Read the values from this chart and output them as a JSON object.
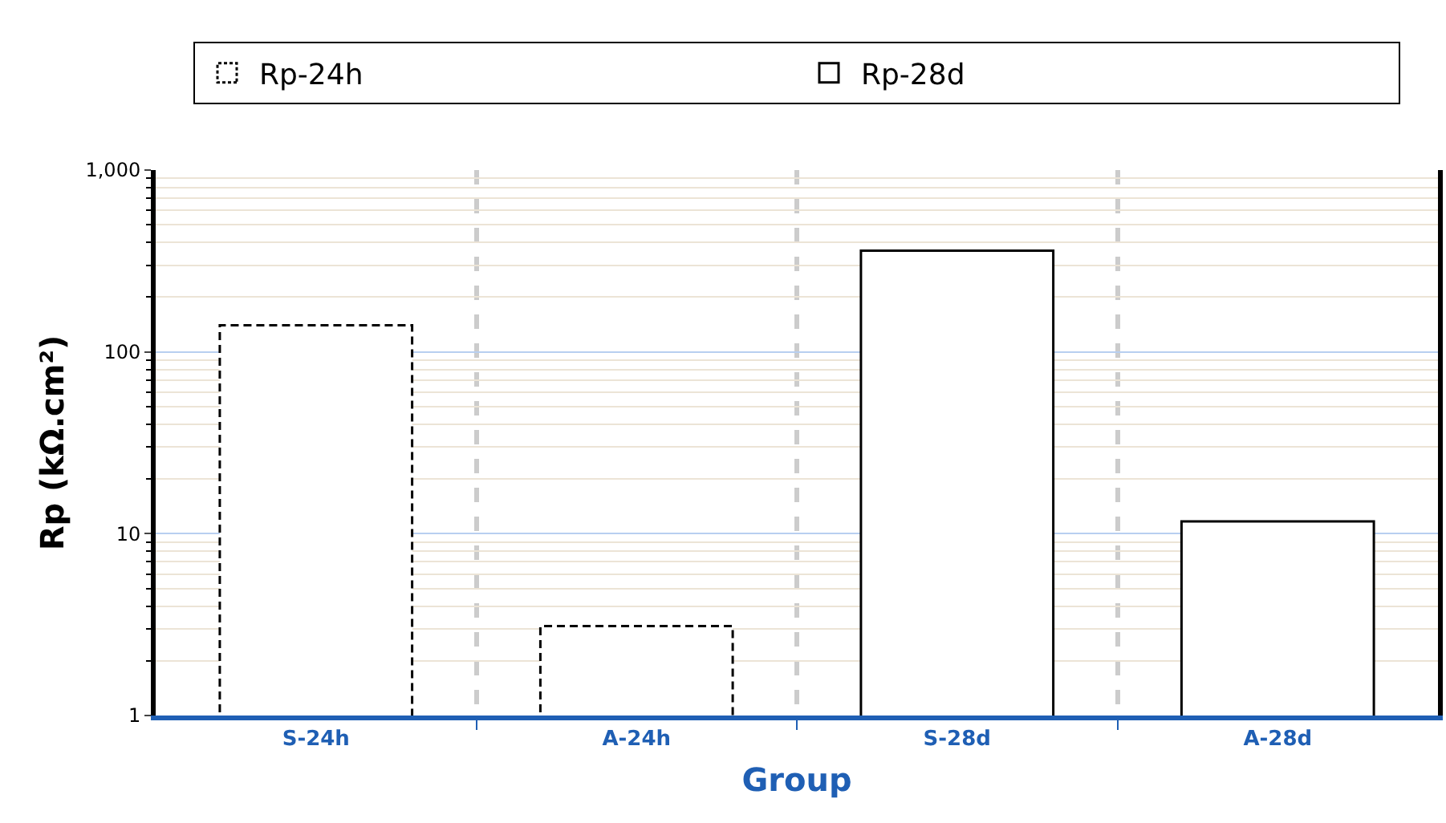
{
  "chart_data": {
    "type": "bar",
    "xlabel": "Group",
    "ylabel": "Rp (kΩ.cm²)",
    "categories": [
      "S-24h",
      "A-24h",
      "S-28d",
      "A-28d"
    ],
    "series": [
      {
        "name": "Rp-24h",
        "color": "#ffffff",
        "line_style": "dashed",
        "values": [
          140,
          3.1,
          null,
          null
        ]
      },
      {
        "name": "Rp-28d",
        "color": "#ffffff",
        "line_style": "solid",
        "values": [
          null,
          null,
          360,
          11.7
        ]
      }
    ],
    "log": true,
    "ylim": [
      1,
      1000
    ],
    "yticks": [
      1,
      10,
      100,
      {
        "value": 1000,
        "label": "1,000"
      }
    ],
    "grid": true,
    "legend": "top"
  }
}
